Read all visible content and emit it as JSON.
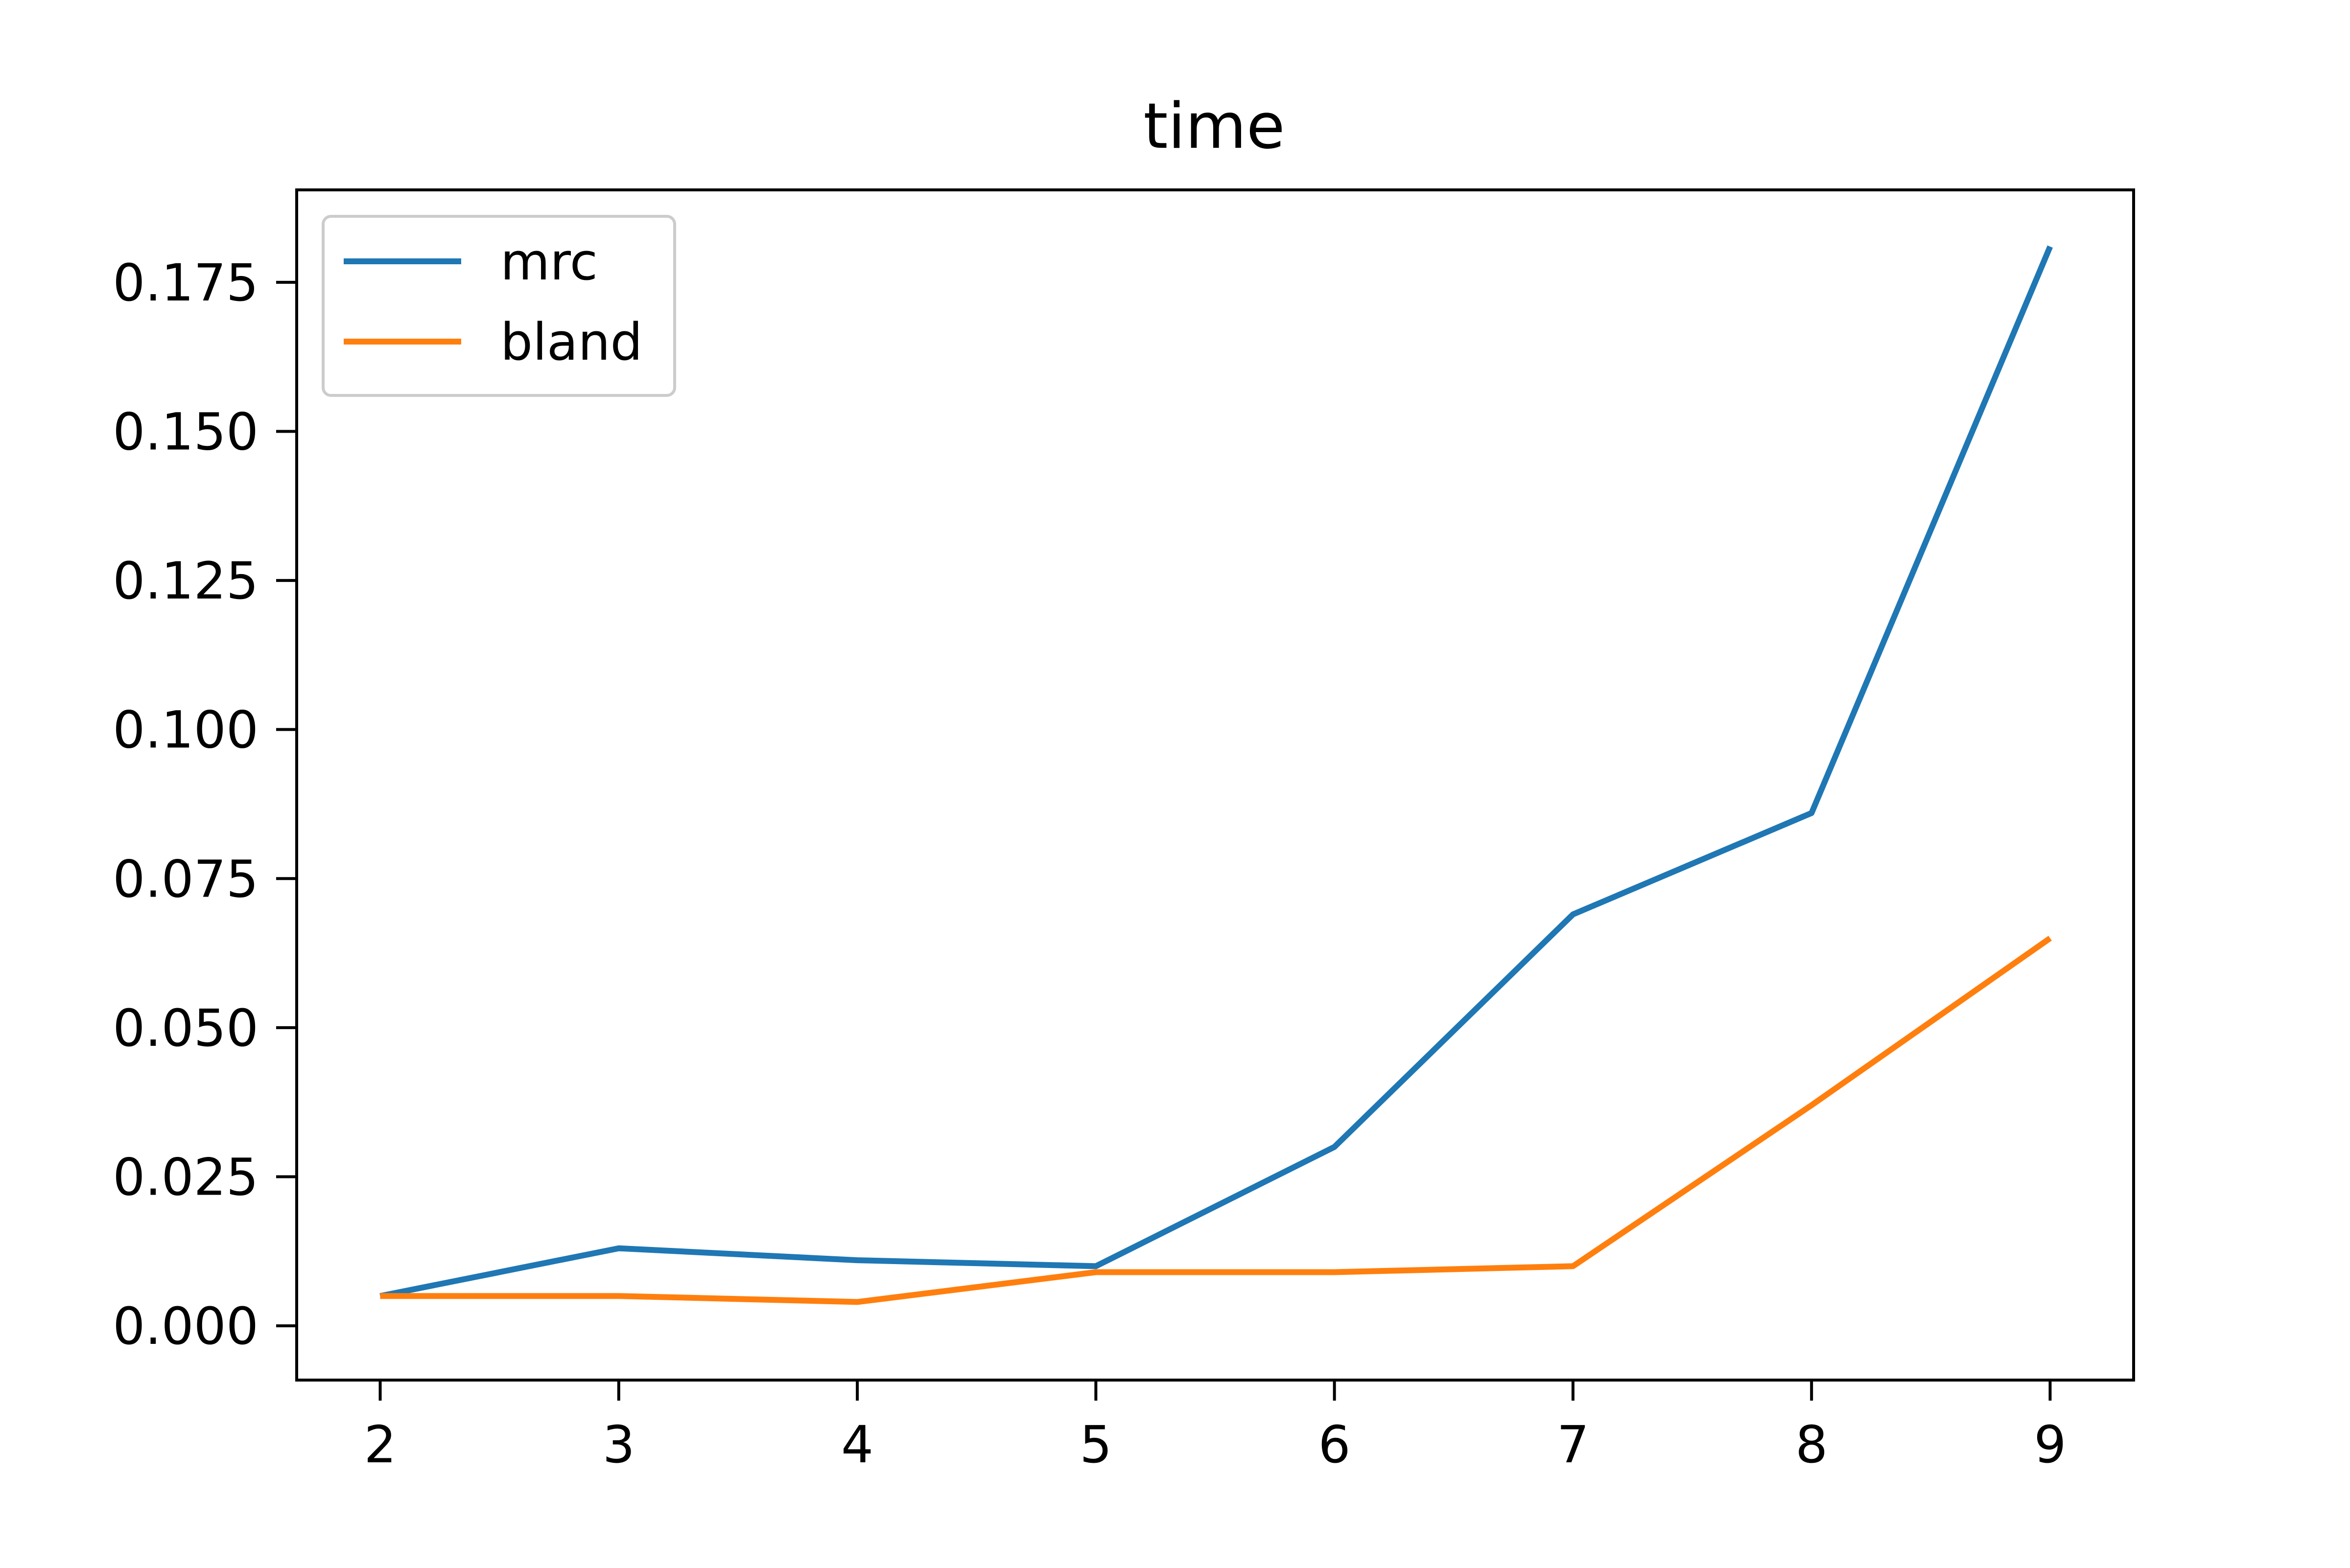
{
  "chart_data": {
    "type": "line",
    "title": "time",
    "xlabel": "",
    "ylabel": "",
    "x": [
      2,
      3,
      4,
      5,
      6,
      7,
      8,
      9
    ],
    "xlim": [
      1.65,
      9.35
    ],
    "ylim": [
      -0.0091,
      0.1905
    ],
    "x_ticks": [
      2,
      3,
      4,
      5,
      6,
      7,
      8,
      9
    ],
    "x_tick_labels": [
      "2",
      "3",
      "4",
      "5",
      "6",
      "7",
      "8",
      "9"
    ],
    "y_ticks": [
      0.0,
      0.025,
      0.05,
      0.075,
      0.1,
      0.125,
      0.15,
      0.175
    ],
    "y_tick_labels": [
      "0.000",
      "0.025",
      "0.050",
      "0.075",
      "0.100",
      "0.125",
      "0.150",
      "0.175"
    ],
    "grid": false,
    "legend_position": "upper-left",
    "series": [
      {
        "name": "mrc",
        "color": "#1f77b4",
        "values": [
          0.005,
          0.013,
          0.011,
          0.01,
          0.03,
          0.069,
          0.086,
          0.181
        ]
      },
      {
        "name": "bland",
        "color": "#ff7f0e",
        "values": [
          0.005,
          0.005,
          0.004,
          0.009,
          0.009,
          0.01,
          0.037,
          0.065
        ]
      }
    ]
  }
}
